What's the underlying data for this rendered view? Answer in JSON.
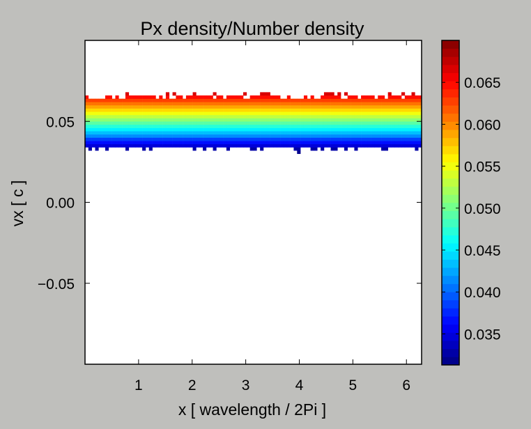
{
  "chart_data": {
    "type": "heatmap",
    "title": "Px density/Number density",
    "xlabel": "x [ wavelength / 2Pi ]",
    "ylabel": "vx [ c ]",
    "xlim": [
      0.0,
      6.283
    ],
    "ylim": [
      -0.1,
      0.1
    ],
    "x_ticks": [
      1,
      2,
      3,
      4,
      5,
      6
    ],
    "x_tick_labels": [
      "1",
      "2",
      "3",
      "4",
      "5",
      "6"
    ],
    "y_ticks": [
      -0.05,
      0.0,
      0.05
    ],
    "y_tick_labels": [
      "−0.05",
      "0.00",
      "0.05"
    ],
    "colorbar": {
      "range": [
        0.0313,
        0.07
      ],
      "ticks": [
        0.035,
        0.04,
        0.045,
        0.05,
        0.055,
        0.06,
        0.065
      ],
      "tick_labels": [
        "0.035",
        "0.040",
        "0.045",
        "0.050",
        "0.055",
        "0.060",
        "0.065"
      ],
      "colormap": "jet",
      "levels": 40
    },
    "band": {
      "vx_center": 0.0495,
      "vx_min_solid": 0.0345,
      "vx_max_solid": 0.0645,
      "vx_min_sparse": 0.0305,
      "vx_max_sparse": 0.0695,
      "x_bins": 100,
      "vx_bins": 100
    },
    "grid": false,
    "background": "#ffffff",
    "figure_background": "#bfbfbc"
  }
}
